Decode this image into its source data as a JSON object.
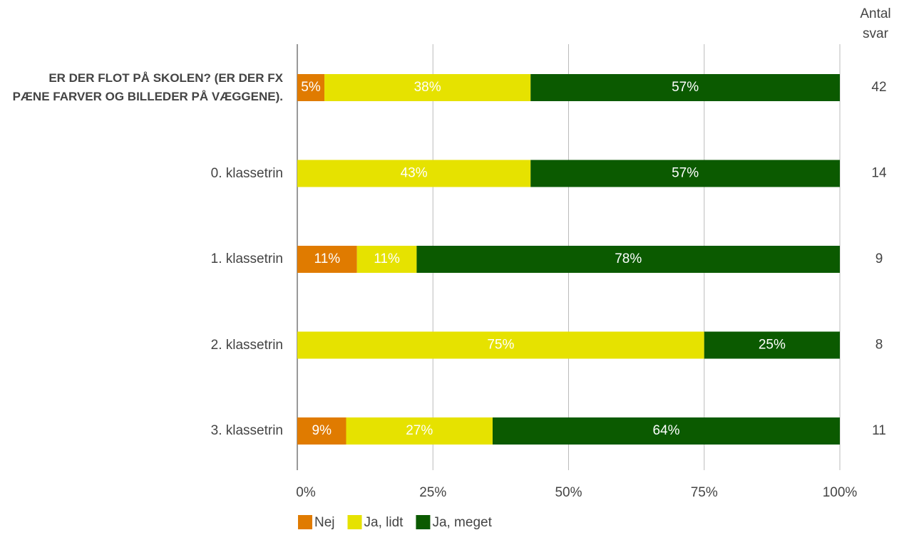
{
  "chart_data": {
    "type": "stacked_bar_horizontal",
    "categories": [
      "ER DER FLOT PÅ SKOLEN? (ER DER FX PÆNE FARVER OG BILLEDER PÅ VÆGGENE).",
      "0. klassetrin",
      "1. klassetrin",
      "2. klassetrin",
      "3. klassetrin"
    ],
    "series": [
      {
        "name": "Nej",
        "color": "#e07b00",
        "values": [
          5,
          0,
          11,
          0,
          9
        ],
        "value_labels": [
          "5%",
          null,
          "11%",
          null,
          "9%"
        ]
      },
      {
        "name": "Ja, lidt",
        "color": "#e6e200",
        "values": [
          38,
          43,
          11,
          75,
          27
        ],
        "value_labels": [
          "38%",
          "43%",
          "11%",
          "75%",
          "27%"
        ]
      },
      {
        "name": "Ja, meget",
        "color": "#0b5a00",
        "values": [
          57,
          57,
          78,
          25,
          64
        ],
        "value_labels": [
          "57%",
          "57%",
          "78%",
          "25%",
          "64%"
        ]
      }
    ],
    "xlim": [
      0,
      100
    ],
    "xticks": [
      {
        "value": 0,
        "label": "0%"
      },
      {
        "value": 25,
        "label": "25%"
      },
      {
        "value": 50,
        "label": "50%"
      },
      {
        "value": 75,
        "label": "75%"
      },
      {
        "value": 100,
        "label": "100%"
      }
    ],
    "grid": true,
    "legend": "bottom",
    "counts_title": "Antal svar",
    "counts": [
      42,
      14,
      9,
      8,
      11
    ]
  }
}
